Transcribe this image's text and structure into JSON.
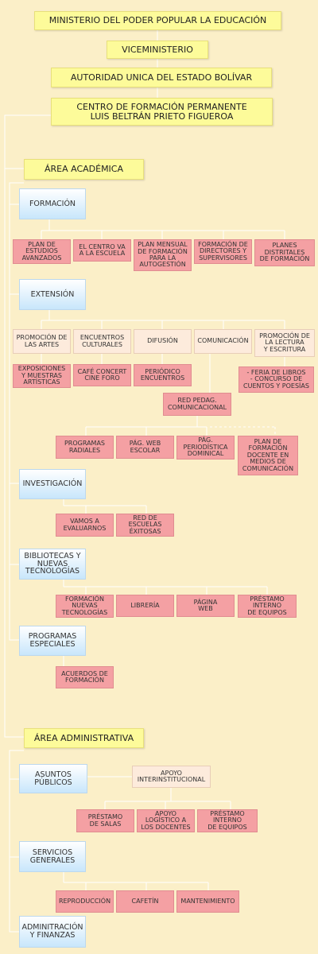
{
  "top": {
    "ministerio": "MINISTERIO DEL PODER POPULAR LA EDUCACIÓN",
    "viceministerio": "VICEMINISTERIO",
    "autoridad": "AUTORIDAD UNICA DEL ESTADO BOLÍVAR",
    "centro": "CENTRO DE FORMACIÓN PERMANENTE\nLUIS BELTRÁN PRIETO FIGUEROA"
  },
  "academica": {
    "title": "ÁREA ACADÉMICA",
    "formacion": {
      "label": "FORMACIÓN",
      "items": [
        "PLAN DE\nESTUDIOS\nAVANZADOS",
        "EL CENTRO VA\nA LA ESCUELA",
        "PLAN MENSUAL\nDE FORMACIÓN\nPARA LA\nAUTOGESTIÓN",
        "FORMACIÓN DE\nDIRECTORES Y\nSUPERVISORES",
        "PLANES\nDISTRITALES\nDE FORMACIÓN"
      ]
    },
    "extension": {
      "label": "EXTENSIÓN",
      "categories": [
        "PROMOCIÓN DE\nLAS ARTES",
        "ENCUENTROS\nCULTURALES",
        "DIFUSIÓN",
        "COMUNICACIÓN",
        "PROMOCIÓN DE\nLA LECTURA\nY ESCRITURA"
      ],
      "subitems": [
        "EXPOSICIONES\nY MUESTRAS\nARTÍSTICAS",
        "CAFÉ CONCERT\nCINE FORO",
        "PERIÓDICO\nENCUENTROS",
        "- FERIA DE LIBROS\n- CONCURSO DE\nCUENTOS Y POESÍAS"
      ],
      "red": "RED PEDAG.\nCOMUNICACIONAL",
      "red_items": [
        "PROGRAMAS\nRADIALES",
        "PÁG. WEB\nESCOLAR",
        "PÁG.\nPERIODÍSTICA\nDOMINICAL",
        "PLAN DE\nFORMACIÓN\nDOCENTE EN\nMEDIOS DE\nCOMUNICACIÓN"
      ]
    },
    "investigacion": {
      "label": "INVESTIGACIÓN",
      "items": [
        "VAMOS A\nEVALUARNOS",
        "RED DE\nESCUELAS\nÉXITOSAS"
      ]
    },
    "bibliotecas": {
      "label": "BIBLIOTECAS Y\nNUEVAS\nTECNOLOGÍAS",
      "items": [
        "FORMACIÓN\nNUEVAS\nTECNOLOGÍAS",
        "LIBRERÍA",
        "PÁGINA\nWEB",
        "PRÉSTAMO\nINTERNO\nDE EQUIPOS"
      ]
    },
    "programas": {
      "label": "PROGRAMAS\nESPECIALES",
      "items": [
        "ACUERDOS DE\nFORMACIÓN"
      ]
    }
  },
  "administrativa": {
    "title": "ÁREA ADMINISTRATIVA",
    "asuntos": {
      "label": "ASUNTOS\nPÚBLICOS",
      "apoyo": "APOYO\nINTERINSTITUCIONAL",
      "items": [
        "PRÉSTAMO\nDE SALAS",
        "APOYO\nLOGÍSTICO A\nLOS DOCENTES",
        "PRÉSTAMO\nINTERNO\nDE EQUIPOS"
      ]
    },
    "servicios": {
      "label": "SERVICIOS\nGENERALES",
      "items": [
        "REPRODUCCIÓN",
        "CAFETÍN",
        "MANTENIMIENTO"
      ]
    },
    "finanzas": {
      "label": "ADMINITRACIÓN\nY FINANZAS"
    }
  },
  "colors": {
    "yellow": "#fdfb9a",
    "blue": "#c8e6fb",
    "pink": "#f4a0a3",
    "light": "#fdebdc",
    "background": "#fbefc8",
    "line": "#ffffff"
  }
}
